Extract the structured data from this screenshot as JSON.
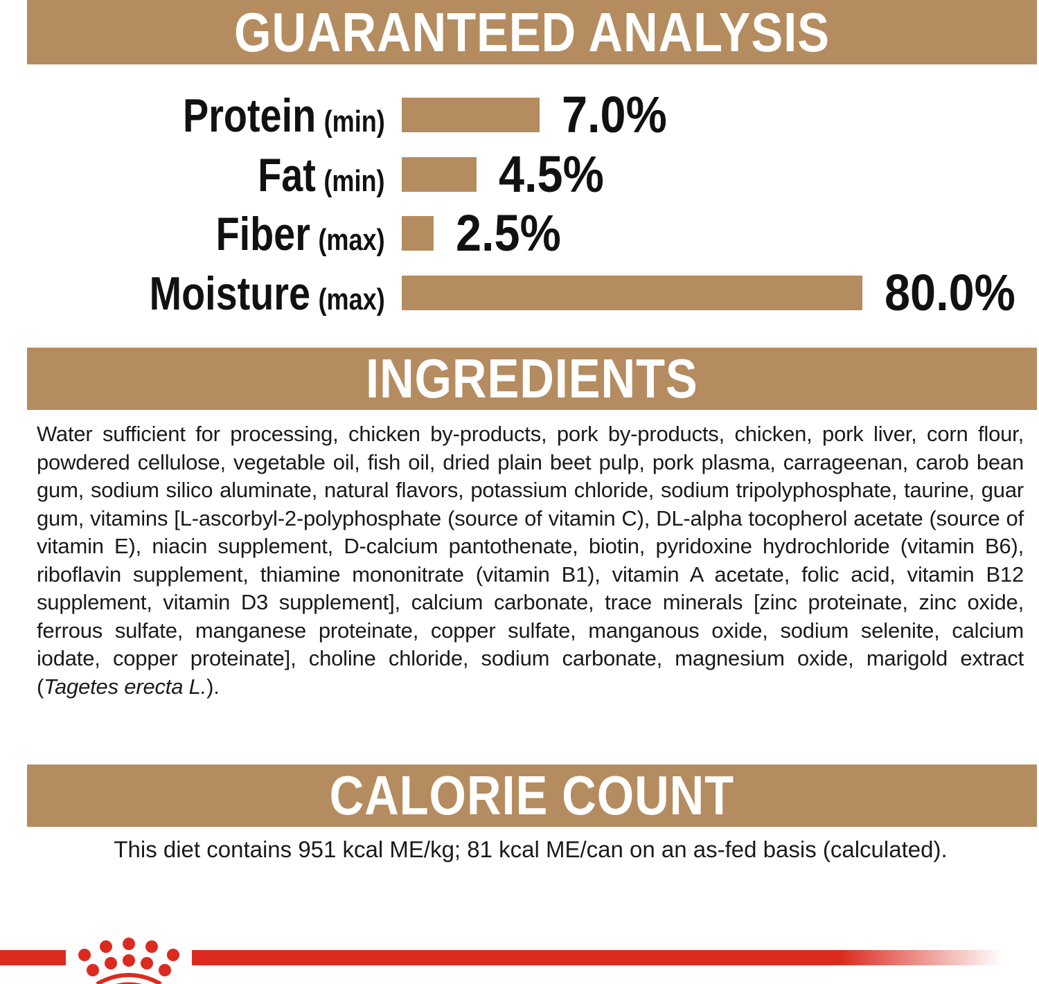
{
  "sections": {
    "analysis_title": "GUARANTEED ANALYSIS",
    "ingredients_title": "INGREDIENTS",
    "calorie_title": "CALORIE COUNT"
  },
  "chart_data": {
    "type": "bar",
    "orientation": "horizontal",
    "categories": [
      "Protein",
      "Fat",
      "Fiber",
      "Moisture"
    ],
    "qualifiers": [
      "(min)",
      "(min)",
      "(max)",
      "(max)"
    ],
    "values": [
      7.0,
      4.5,
      2.5,
      80.0
    ],
    "value_labels": [
      "7.0%",
      "4.5%",
      "2.5%",
      "80.0%"
    ],
    "bar_color": "#b48c5f"
  },
  "ingredients": {
    "text": "Water sufficient for processing, chicken by-products, pork by-products, chicken, pork liver, corn flour, powdered cellulose, vegetable oil, fish oil, dried plain beet pulp, pork plasma, carrageenan, carob bean gum, sodium silico aluminate, natural flavors, potassium chloride, sodium tripolyphosphate, taurine, guar gum, vitamins [L-ascorbyl-2-polyphosphate (source of vitamin C), DL-alpha tocopherol acetate (source of vitamin E), niacin supplement, D-calcium pantothenate, biotin, pyridoxine hydrochloride (vitamin B6), riboflavin supplement, thiamine mononitrate (vitamin B1), vitamin A acetate, folic acid, vitamin B12 supplement, vitamin D3 supplement], calcium carbonate, trace minerals [zinc proteinate, zinc oxide, ferrous sulfate, manganese proteinate, copper sulfate, manganous oxide, sodium selenite, calcium iodate, copper proteinate], choline chloride, sodium carbonate, magnesium oxide, marigold extract (",
    "italic": "Tagetes erecta L.",
    "end": ")."
  },
  "calorie": {
    "text": "This diet contains 951 kcal ME/kg; 81 kcal ME/can on an as-fed basis (calculated)."
  },
  "brand": {
    "logo": "crown-logo",
    "color": "#dc2a1f"
  }
}
